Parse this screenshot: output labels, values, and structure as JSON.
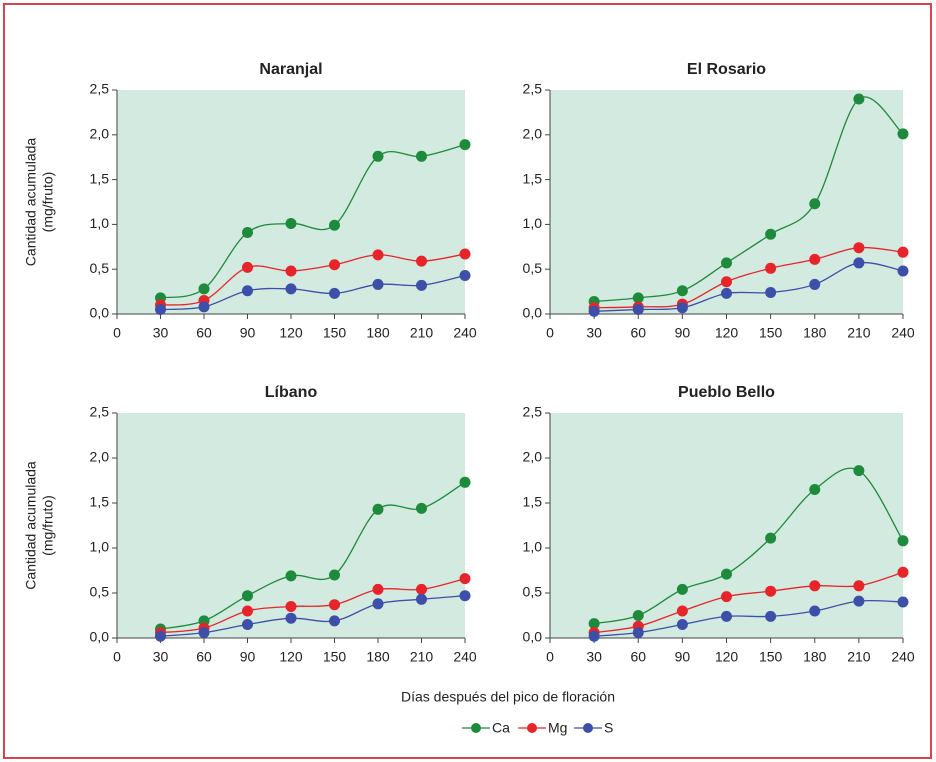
{
  "xlabel": "Días después del pico de floración",
  "chart_data": [
    {
      "type": "line",
      "title": "Naranjal",
      "ylabel": [
        "Cantidad acumulada",
        "(mg/fruto)"
      ],
      "x": [
        30,
        60,
        90,
        120,
        150,
        180,
        210,
        240
      ],
      "xlim": [
        0,
        240
      ],
      "xticks": [
        0,
        30,
        60,
        90,
        120,
        150,
        180,
        210,
        240
      ],
      "ylim": [
        0,
        2.5
      ],
      "yticks": [
        {
          "value": 0,
          "label": "0,0"
        },
        {
          "value": 0.5,
          "label": "0,5"
        },
        {
          "value": 1,
          "label": "1,0"
        },
        {
          "value": 1.5,
          "label": "1,5"
        },
        {
          "value": 2,
          "label": "2,0"
        },
        {
          "value": 2.5,
          "label": "2,5"
        }
      ],
      "grid": false,
      "background": "#d2eadf",
      "series": [
        {
          "name": "Ca",
          "color": "#1e8a3c",
          "values": [
            0.18,
            0.28,
            0.91,
            1.01,
            0.99,
            1.76,
            1.76,
            1.89
          ]
        },
        {
          "name": "Mg",
          "color": "#e8242b",
          "values": [
            0.1,
            0.15,
            0.52,
            0.48,
            0.55,
            0.66,
            0.59,
            0.67
          ]
        },
        {
          "name": "S",
          "color": "#3d4fa8",
          "values": [
            0.05,
            0.08,
            0.26,
            0.28,
            0.23,
            0.33,
            0.32,
            0.43
          ]
        }
      ]
    },
    {
      "type": "line",
      "title": "El Rosario",
      "x": [
        30,
        60,
        90,
        120,
        150,
        180,
        210,
        240
      ],
      "xlim": [
        0,
        240
      ],
      "xticks": [
        0,
        30,
        60,
        90,
        120,
        150,
        180,
        210,
        240
      ],
      "ylim": [
        0,
        2.5
      ],
      "yticks": [
        {
          "value": 0,
          "label": "0,0"
        },
        {
          "value": 0.5,
          "label": "0,5"
        },
        {
          "value": 1,
          "label": "1,0"
        },
        {
          "value": 1.5,
          "label": "1,5"
        },
        {
          "value": 2,
          "label": "2,0"
        },
        {
          "value": 2.5,
          "label": "2,5"
        }
      ],
      "grid": false,
      "background": "#d2eadf",
      "series": [
        {
          "name": "Ca",
          "color": "#1e8a3c",
          "values": [
            0.14,
            0.18,
            0.26,
            0.57,
            0.89,
            1.23,
            2.4,
            2.01
          ]
        },
        {
          "name": "Mg",
          "color": "#e8242b",
          "values": [
            0.07,
            0.08,
            0.11,
            0.36,
            0.51,
            0.61,
            0.74,
            0.69
          ]
        },
        {
          "name": "S",
          "color": "#3d4fa8",
          "values": [
            0.03,
            0.05,
            0.07,
            0.23,
            0.24,
            0.33,
            0.57,
            0.48
          ]
        }
      ]
    },
    {
      "type": "line",
      "title": "Líbano",
      "ylabel": [
        "Cantidad acumulada",
        "(mg/fruto)"
      ],
      "x": [
        30,
        60,
        90,
        120,
        150,
        180,
        210,
        240
      ],
      "xlim": [
        0,
        240
      ],
      "xticks": [
        0,
        30,
        60,
        90,
        120,
        150,
        180,
        210,
        240
      ],
      "ylim": [
        0,
        2.5
      ],
      "yticks": [
        {
          "value": 0,
          "label": "0,0"
        },
        {
          "value": 0.5,
          "label": "0,5"
        },
        {
          "value": 1,
          "label": "1,0"
        },
        {
          "value": 1.5,
          "label": "1,5"
        },
        {
          "value": 2,
          "label": "2,0"
        },
        {
          "value": 2.5,
          "label": "2,5"
        }
      ],
      "grid": false,
      "background": "#d2eadf",
      "series": [
        {
          "name": "Ca",
          "color": "#1e8a3c",
          "values": [
            0.1,
            0.19,
            0.47,
            0.69,
            0.7,
            1.43,
            1.44,
            1.73
          ]
        },
        {
          "name": "Mg",
          "color": "#e8242b",
          "values": [
            0.06,
            0.11,
            0.3,
            0.35,
            0.37,
            0.54,
            0.54,
            0.66
          ]
        },
        {
          "name": "S",
          "color": "#3d4fa8",
          "values": [
            0.02,
            0.06,
            0.15,
            0.22,
            0.19,
            0.38,
            0.43,
            0.47
          ]
        }
      ]
    },
    {
      "type": "line",
      "title": "Pueblo Bello",
      "x": [
        30,
        60,
        90,
        120,
        150,
        180,
        210,
        240
      ],
      "xlim": [
        0,
        240
      ],
      "xticks": [
        0,
        30,
        60,
        90,
        120,
        150,
        180,
        210,
        240
      ],
      "ylim": [
        0,
        2.5
      ],
      "yticks": [
        {
          "value": 0,
          "label": "0,0"
        },
        {
          "value": 0.5,
          "label": "0,5"
        },
        {
          "value": 1,
          "label": "1,0"
        },
        {
          "value": 1.5,
          "label": "1,5"
        },
        {
          "value": 2,
          "label": "2,0"
        },
        {
          "value": 2.5,
          "label": "2,5"
        }
      ],
      "grid": false,
      "background": "#d2eadf",
      "series": [
        {
          "name": "Ca",
          "color": "#1e8a3c",
          "values": [
            0.16,
            0.25,
            0.54,
            0.71,
            1.11,
            1.65,
            1.86,
            1.08
          ]
        },
        {
          "name": "Mg",
          "color": "#e8242b",
          "values": [
            0.06,
            0.13,
            0.3,
            0.46,
            0.52,
            0.58,
            0.58,
            0.73
          ]
        },
        {
          "name": "S",
          "color": "#3d4fa8",
          "values": [
            0.02,
            0.06,
            0.15,
            0.24,
            0.24,
            0.3,
            0.41,
            0.4
          ]
        }
      ]
    }
  ]
}
